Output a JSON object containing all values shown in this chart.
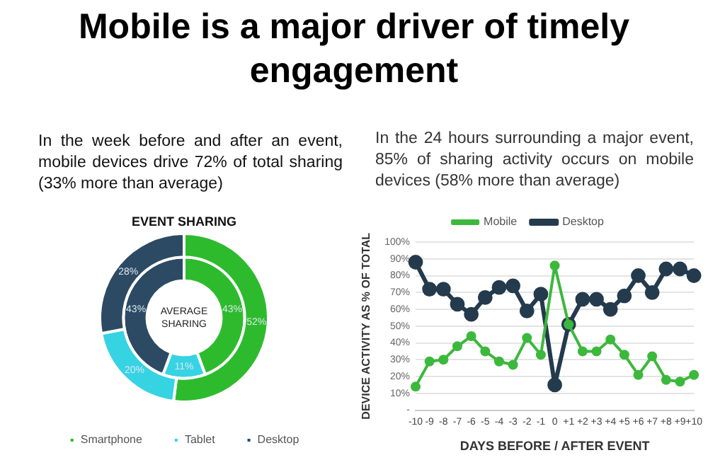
{
  "chart_data": [
    {
      "type": "donut",
      "title": "Mobile is a major driver of timely engagement",
      "subtitle": "In the week before and after an event, mobile devices drive 72% of total sharing (33% more than average)",
      "categories": [
        "Smartphone",
        "Tablet",
        "Desktop"
      ],
      "colors": [
        "#2dbb2d",
        "#36d3e3",
        "#2c4a63"
      ],
      "series": [
        {
          "name": "EVENT SHARING",
          "values": [
            52,
            20,
            28
          ],
          "value_labels": [
            "52%",
            "20%",
            "28%"
          ]
        },
        {
          "name": "AVERAGE SHARING",
          "values": [
            43,
            11,
            43
          ],
          "value_labels": [
            "43%",
            "11%",
            "43%"
          ]
        }
      ],
      "legend": "bottom"
    },
    {
      "type": "line",
      "subtitle": "In the 24 hours surrounding a major event, 85% of sharing activity occurs on mobile devices (58% more than average)",
      "categories": [
        "-10",
        "-9",
        "-8",
        "-7",
        "-6",
        "-5",
        "-4",
        "-3",
        "-2",
        "-1",
        "0",
        "+1",
        "+2",
        "+3",
        "+4",
        "+5",
        "+6",
        "+7",
        "+8",
        "+9",
        "+10"
      ],
      "series": [
        {
          "name": "Mobile",
          "color": "#3cb83c",
          "values": [
            14,
            29,
            30,
            38,
            44,
            35,
            29,
            27,
            43,
            33,
            86,
            51,
            35,
            35,
            42,
            33,
            21,
            32,
            18,
            17,
            21
          ]
        },
        {
          "name": "Desktop",
          "color": "#243a4d",
          "values": [
            88,
            72,
            72,
            63,
            57,
            67,
            73,
            74,
            59,
            69,
            15,
            51,
            66,
            66,
            60,
            68,
            80,
            70,
            84,
            84,
            80
          ]
        }
      ],
      "xlabel": "DAYS BEFORE / AFTER EVENT",
      "ylabel": "DEVICE ACTIVITY AS % OF TOTAL",
      "ylim": [
        0,
        100
      ],
      "yticks": [
        {
          "value": 0,
          "label": "-"
        },
        {
          "value": 10,
          "label": "10%"
        },
        {
          "value": 20,
          "label": "20%"
        },
        {
          "value": 30,
          "label": "30%"
        },
        {
          "value": 40,
          "label": "40%"
        },
        {
          "value": 50,
          "label": "50%"
        },
        {
          "value": 60,
          "label": "60%"
        },
        {
          "value": 70,
          "label": "70%"
        },
        {
          "value": 80,
          "label": "80%"
        },
        {
          "value": 90,
          "label": "90%"
        },
        {
          "value": 100,
          "label": "100%"
        }
      ],
      "grid": "y",
      "legend": "top",
      "marker": "circle",
      "line_style": "solid"
    }
  ]
}
